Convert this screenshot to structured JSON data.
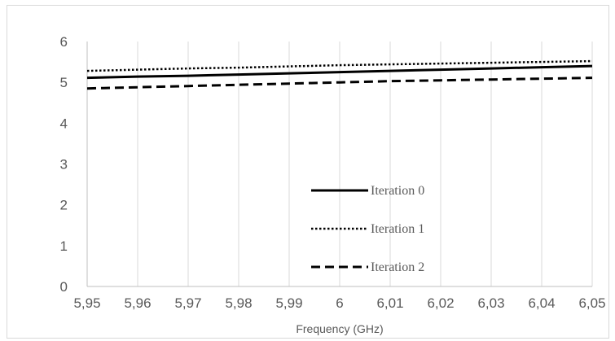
{
  "chart_data": {
    "type": "line",
    "x": [
      5.95,
      5.96,
      5.97,
      5.98,
      5.99,
      6.0,
      6.01,
      6.02,
      6.03,
      6.04,
      6.05
    ],
    "x_tick_labels": [
      "5,95",
      "5,96",
      "5,97",
      "5,98",
      "5,99",
      "6",
      "6,01",
      "6,02",
      "6,03",
      "6,04",
      "6,05"
    ],
    "y_ticks": [
      0,
      1,
      2,
      3,
      4,
      5,
      6
    ],
    "xlim": [
      5.95,
      6.05
    ],
    "ylim": [
      0,
      6
    ],
    "title": "",
    "xlabel": "Frequency (GHz)",
    "ylabel": "",
    "grid": "vertical",
    "legend_position": "center-right",
    "series": [
      {
        "name": "Iteration 0",
        "style": "solid",
        "color": "#000000",
        "values": [
          5.11,
          5.14,
          5.16,
          5.19,
          5.22,
          5.25,
          5.28,
          5.31,
          5.34,
          5.37,
          5.4
        ]
      },
      {
        "name": "Iteration 1",
        "style": "dotted",
        "color": "#000000",
        "values": [
          5.28,
          5.31,
          5.34,
          5.36,
          5.39,
          5.42,
          5.44,
          5.46,
          5.48,
          5.5,
          5.52
        ]
      },
      {
        "name": "Iteration 2",
        "style": "dashed",
        "color": "#000000",
        "values": [
          4.85,
          4.88,
          4.91,
          4.94,
          4.97,
          5.0,
          5.03,
          5.05,
          5.07,
          5.09,
          5.11
        ]
      }
    ]
  }
}
